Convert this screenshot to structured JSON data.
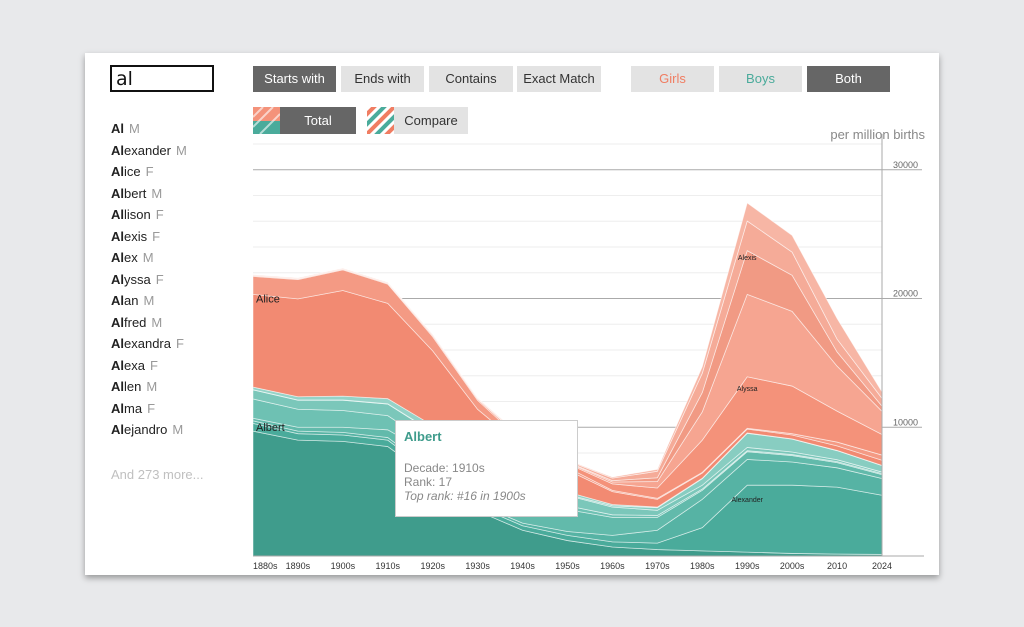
{
  "search": {
    "value": "al"
  },
  "match_buttons": [
    {
      "label": "Starts with",
      "active": true
    },
    {
      "label": "Ends with",
      "active": false
    },
    {
      "label": "Contains",
      "active": false
    },
    {
      "label": "Exact Match",
      "active": false
    }
  ],
  "sex_buttons": [
    {
      "label": "Girls",
      "active": false
    },
    {
      "label": "Boys",
      "active": false
    },
    {
      "label": "Both",
      "active": true
    }
  ],
  "mode_buttons": [
    {
      "label": "Total",
      "active": true
    },
    {
      "label": "Compare",
      "active": false
    }
  ],
  "names": [
    {
      "prefix": "Al",
      "rest": "",
      "sex": "M"
    },
    {
      "prefix": "Al",
      "rest": "exander",
      "sex": "M"
    },
    {
      "prefix": "Al",
      "rest": "ice",
      "sex": "F"
    },
    {
      "prefix": "Al",
      "rest": "bert",
      "sex": "M"
    },
    {
      "prefix": "Al",
      "rest": "lison",
      "sex": "F"
    },
    {
      "prefix": "Al",
      "rest": "exis",
      "sex": "F"
    },
    {
      "prefix": "Al",
      "rest": "ex",
      "sex": "M"
    },
    {
      "prefix": "Al",
      "rest": "yssa",
      "sex": "F"
    },
    {
      "prefix": "Al",
      "rest": "an",
      "sex": "M"
    },
    {
      "prefix": "Al",
      "rest": "fred",
      "sex": "M"
    },
    {
      "prefix": "Al",
      "rest": "exandra",
      "sex": "F"
    },
    {
      "prefix": "Al",
      "rest": "exa",
      "sex": "F"
    },
    {
      "prefix": "Al",
      "rest": "len",
      "sex": "M"
    },
    {
      "prefix": "Al",
      "rest": "ma",
      "sex": "F"
    },
    {
      "prefix": "Al",
      "rest": "ejandro",
      "sex": "M"
    }
  ],
  "more_text": "And 273 more...",
  "unit_label": "per million births",
  "tooltip": {
    "name": "Albert",
    "decade": "Decade: 1910s",
    "rank": "Rank: 17",
    "top_rank": "Top rank: #16 in 1900s"
  },
  "colors": {
    "girls": "#f4927a",
    "boys": "#4aab9b",
    "active_button": "#666666",
    "inactive_button": "#e3e3e3"
  },
  "chart_data": {
    "type": "area",
    "stacked": true,
    "x": [
      "1880s",
      "1890s",
      "1900s",
      "1910s",
      "1920s",
      "1930s",
      "1940s",
      "1950s",
      "1960s",
      "1970s",
      "1980s",
      "1990s",
      "2000s",
      "2010",
      "2024"
    ],
    "ylim": [
      0,
      32000
    ],
    "yticks": [
      10000,
      20000,
      30000
    ],
    "grid": true,
    "legend": "none",
    "area_labels": [
      {
        "text": "Alice",
        "x": "1880s",
        "y": 19700
      },
      {
        "text": "Albert",
        "x": "1880s",
        "y": 9700
      },
      {
        "text": "Alexis",
        "x": "1990s",
        "y": 23000
      },
      {
        "text": "Alyssa",
        "x": "1990s",
        "y": 12800
      },
      {
        "text": "Alexander",
        "x": "1990s",
        "y": 4200
      }
    ],
    "series": [
      {
        "name": "Albert",
        "sex": "M",
        "values": [
          9700,
          9000,
          8900,
          8500,
          6000,
          3500,
          2000,
          1200,
          700,
          500,
          400,
          300,
          200,
          150,
          120
        ]
      },
      {
        "name": "Alexander",
        "sex": "M",
        "values": [
          600,
          500,
          500,
          500,
          400,
          350,
          350,
          400,
          400,
          500,
          1800,
          5200,
          5300,
          5200,
          4600
        ]
      },
      {
        "name": "Alex",
        "sex": "M",
        "values": [
          200,
          200,
          200,
          200,
          200,
          200,
          200,
          300,
          500,
          1000,
          2200,
          2000,
          1800,
          1500,
          1300
        ]
      },
      {
        "name": "Alan",
        "sex": "M",
        "values": [
          200,
          300,
          400,
          600,
          1200,
          1600,
          1800,
          1700,
          1400,
          1000,
          700,
          600,
          500,
          400,
          300
        ]
      },
      {
        "name": "Alfred",
        "sex": "M",
        "values": [
          1500,
          1400,
          1300,
          1100,
          800,
          600,
          400,
          300,
          200,
          150,
          100,
          80,
          80,
          80,
          80
        ]
      },
      {
        "name": "Allen",
        "sex": "M",
        "values": [
          700,
          700,
          800,
          900,
          1000,
          1000,
          900,
          800,
          600,
          400,
          300,
          250,
          200,
          150,
          120
        ]
      },
      {
        "name": "Alice",
        "sex": "F",
        "values": [
          7200,
          7600,
          8200,
          7400,
          5800,
          3700,
          2500,
          1700,
          1000,
          600,
          400,
          300,
          300,
          350,
          400
        ]
      },
      {
        "name": "Alma",
        "sex": "F",
        "values": [
          1400,
          1500,
          1600,
          1500,
          1100,
          700,
          400,
          200,
          100,
          80,
          60,
          60,
          100,
          300,
          400
        ]
      },
      {
        "name": "Allison",
        "sex": "F",
        "values": [
          50,
          50,
          50,
          50,
          100,
          100,
          150,
          300,
          500,
          800,
          2500,
          4000,
          3700,
          2400,
          1600
        ]
      },
      {
        "name": "Alexis",
        "sex": "F",
        "values": [
          30,
          30,
          30,
          30,
          30,
          30,
          50,
          80,
          150,
          500,
          2200,
          6400,
          5800,
          3500,
          1800
        ]
      },
      {
        "name": "Alyssa",
        "sex": "F",
        "values": [
          0,
          0,
          0,
          0,
          0,
          0,
          20,
          50,
          100,
          300,
          1500,
          3400,
          2800,
          1100,
          400
        ]
      },
      {
        "name": "Alexandra",
        "sex": "F",
        "values": [
          50,
          50,
          50,
          50,
          50,
          50,
          80,
          100,
          200,
          500,
          1500,
          2300,
          1800,
          1000,
          600
        ]
      },
      {
        "name": "Alexa",
        "sex": "F",
        "values": [
          0,
          0,
          0,
          0,
          0,
          0,
          20,
          50,
          80,
          150,
          500,
          1400,
          1300,
          1600,
          500
        ]
      },
      {
        "name": "Alejandro",
        "sex": "M",
        "values": [
          20,
          20,
          20,
          20,
          30,
          40,
          50,
          70,
          100,
          200,
          500,
          1100,
          1000,
          700,
          500
        ]
      },
      {
        "name": "Al",
        "sex": "M",
        "values": [
          200,
          250,
          300,
          400,
          500,
          400,
          300,
          200,
          100,
          50,
          40,
          30,
          20,
          20,
          20
        ]
      }
    ]
  }
}
